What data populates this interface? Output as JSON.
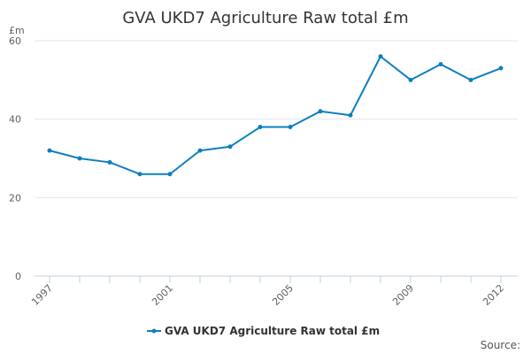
{
  "chart_data": {
    "type": "line",
    "title": "GVA UKD7 Agriculture Raw total £m",
    "y_unit_label": "£m",
    "x": [
      1997,
      1998,
      1999,
      2000,
      2001,
      2002,
      2003,
      2004,
      2005,
      2006,
      2007,
      2008,
      2009,
      2010,
      2011,
      2012
    ],
    "x_tick_labels": [
      "1997",
      "2001",
      "2005",
      "2009",
      "2012"
    ],
    "y_ticks": [
      "0",
      "20",
      "40",
      "60"
    ],
    "ylim": [
      0,
      60
    ],
    "series": [
      {
        "name": "GVA UKD7 Agriculture Raw total £m",
        "color": "#0d7fbf",
        "values": [
          32,
          30,
          29,
          26,
          26,
          32,
          33,
          38,
          38,
          42,
          41,
          56,
          50,
          54,
          50,
          53
        ]
      }
    ],
    "legend_position": "bottom-center",
    "grid": true,
    "source_label": "Source:"
  }
}
